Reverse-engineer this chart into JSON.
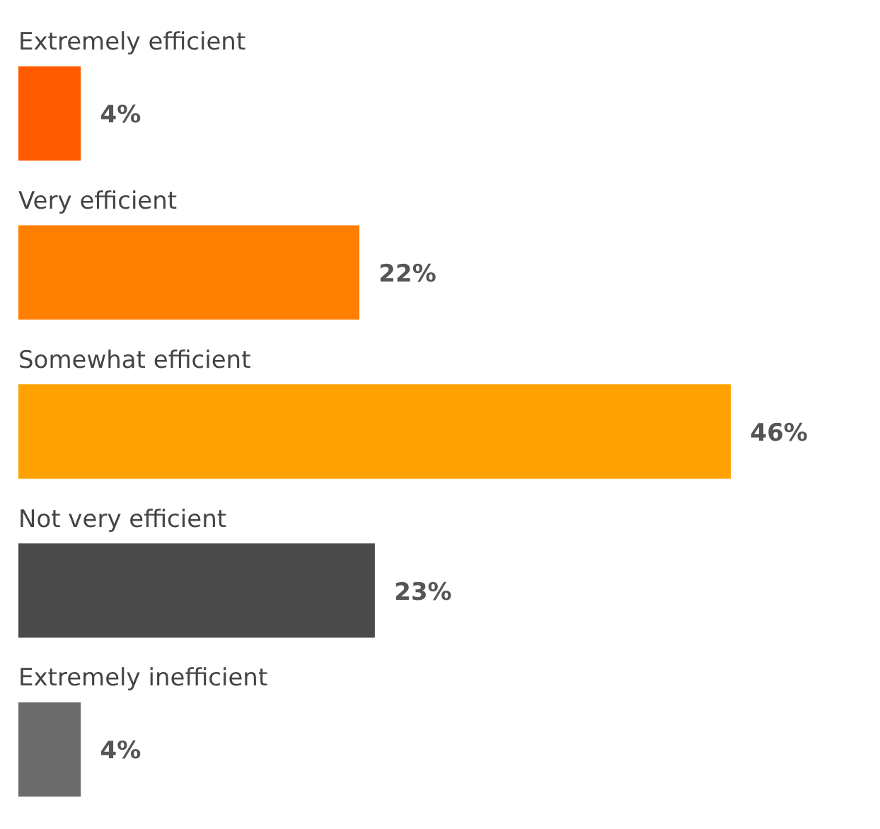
{
  "chart_data": {
    "type": "bar",
    "orientation": "horizontal",
    "categories": [
      "Extremely efficient",
      "Very efficient",
      "Somewhat efficient",
      "Not very efficient",
      "Extremely inefficient"
    ],
    "values": [
      4,
      22,
      46,
      23,
      4
    ],
    "value_labels": [
      "4%",
      "22%",
      "46%",
      "23%",
      "4%"
    ],
    "colors": [
      "#ff5a00",
      "#ff7f00",
      "#ffa100",
      "#4a4a4a",
      "#6b6b6b"
    ]
  }
}
